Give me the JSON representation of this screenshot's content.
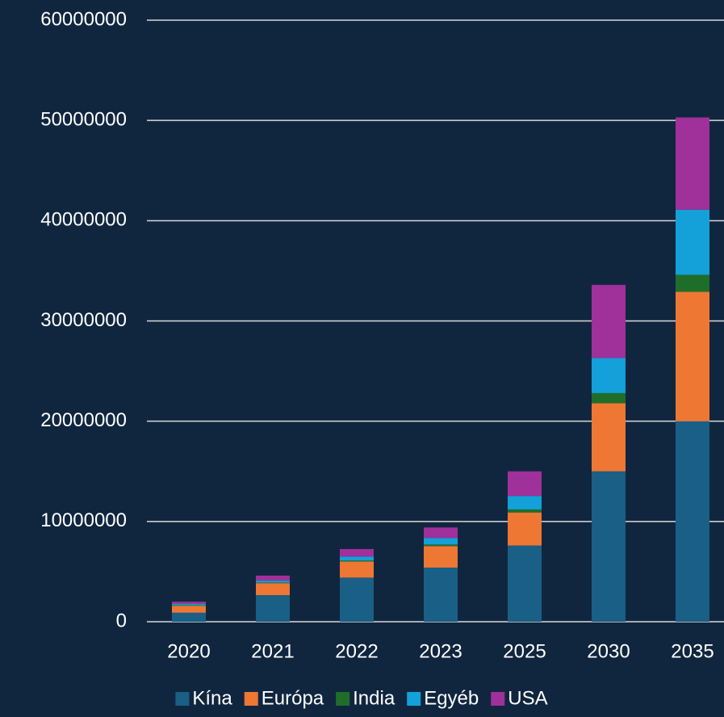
{
  "chart_data": {
    "type": "stacked_bar",
    "categories": [
      "2020",
      "2021",
      "2022",
      "2023",
      "2025",
      "2030",
      "2035"
    ],
    "series": [
      {
        "name": "Kína",
        "color": "#1a5f85",
        "values": [
          900000,
          2650000,
          4400000,
          5400000,
          7600000,
          15000000,
          20000000
        ]
      },
      {
        "name": "Európa",
        "color": "#ee7733",
        "values": [
          700000,
          1200000,
          1600000,
          2150000,
          3300000,
          6800000,
          12900000
        ]
      },
      {
        "name": "India",
        "color": "#1e6e2a",
        "values": [
          50000,
          50000,
          100000,
          150000,
          300000,
          1000000,
          1700000
        ]
      },
      {
        "name": "Egyéb",
        "color": "#14a0d8",
        "values": [
          150000,
          200000,
          400000,
          650000,
          1350000,
          3500000,
          6500000
        ]
      },
      {
        "name": "USA",
        "color": "#a0309a",
        "values": [
          200000,
          500000,
          750000,
          1050000,
          2450000,
          7300000,
          9200000
        ]
      }
    ],
    "ylim": [
      0,
      60000000
    ],
    "yticks": [
      0,
      10000000,
      20000000,
      30000000,
      40000000,
      50000000,
      60000000
    ],
    "grid": true,
    "legend": "bottom"
  }
}
